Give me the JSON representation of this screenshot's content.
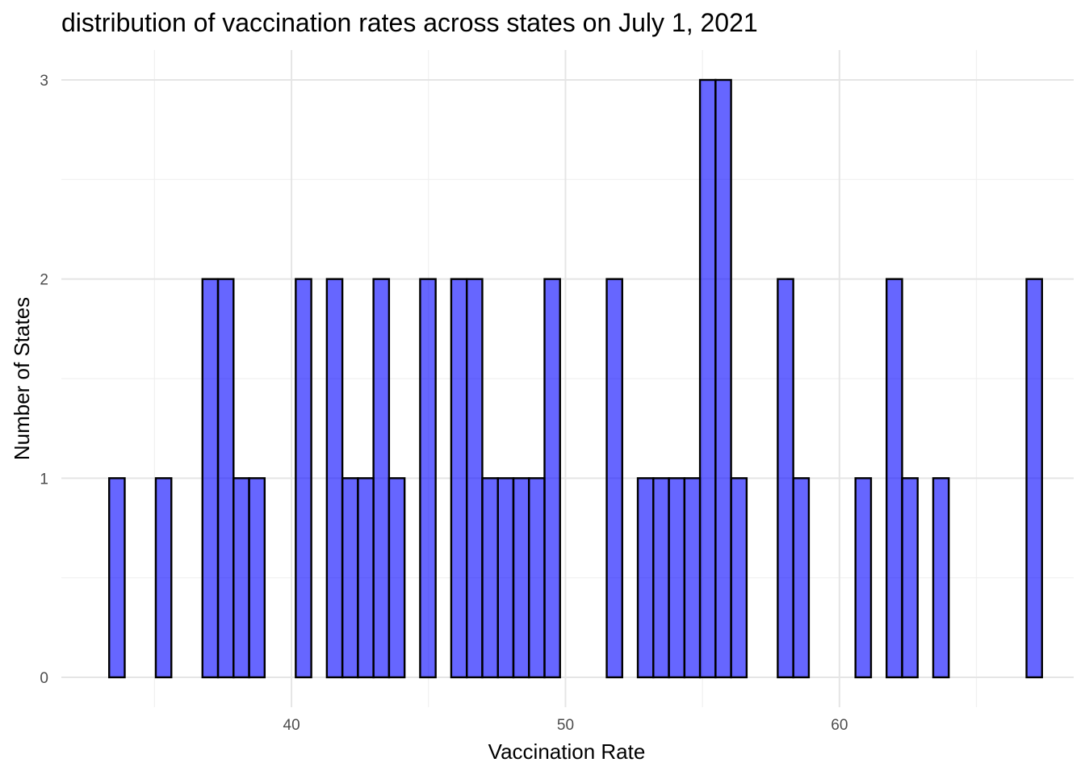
{
  "chart_data": {
    "type": "bar",
    "title": "distribution of vaccination rates across states on July 1, 2021",
    "xlabel": "Vaccination Rate",
    "ylabel": "Number of States",
    "bin_width": 0.5675,
    "bin_starts": [
      33.345,
      33.9125,
      34.48,
      35.0475,
      35.615,
      36.1825,
      36.75,
      37.3175,
      37.885,
      38.4525,
      39.02,
      39.5875,
      40.155,
      40.7225,
      41.29,
      41.8575,
      42.425,
      42.9925,
      43.56,
      44.1275,
      44.695,
      45.2625,
      45.83,
      46.3975,
      46.965,
      47.5325,
      48.1,
      48.6675,
      49.235,
      49.8025,
      50.37,
      50.9375,
      51.505,
      52.0725,
      52.64,
      53.2075,
      53.775,
      54.3425,
      54.91,
      55.4775,
      56.045,
      56.6125,
      57.18,
      57.7475,
      58.315,
      58.8825,
      59.45,
      60.0175,
      60.585,
      61.1525,
      61.72,
      62.2875,
      62.855,
      63.4225,
      63.99,
      64.5575,
      65.125,
      65.6925,
      66.26,
      66.8275
    ],
    "values": [
      1,
      0,
      0,
      1,
      0,
      0,
      2,
      2,
      1,
      1,
      0,
      0,
      2,
      0,
      2,
      1,
      1,
      2,
      1,
      0,
      2,
      0,
      2,
      2,
      1,
      1,
      1,
      1,
      2,
      0,
      0,
      0,
      2,
      0,
      1,
      1,
      1,
      1,
      3,
      3,
      1,
      0,
      0,
      2,
      1,
      0,
      0,
      0,
      1,
      0,
      2,
      1,
      0,
      1,
      0,
      0,
      0,
      0,
      0,
      2
    ],
    "x_ticks": [
      40,
      50,
      60
    ],
    "x_tick_labels": [
      "40",
      "50",
      "60"
    ],
    "x_minor_ticks": [
      35,
      45,
      55,
      65
    ],
    "y_ticks": [
      0,
      1,
      2,
      3
    ],
    "y_tick_labels": [
      "0",
      "1",
      "2",
      "3"
    ],
    "y_minor_ticks": [
      0.5,
      1.5,
      2.5
    ],
    "xlim": [
      31.6,
      68.55
    ],
    "ylim": [
      -0.15,
      3.15
    ],
    "bar_fill": "#0000ff",
    "bar_fill_opacity": 0.6,
    "bar_outline": "#000000",
    "grid": true,
    "legend": "none"
  }
}
